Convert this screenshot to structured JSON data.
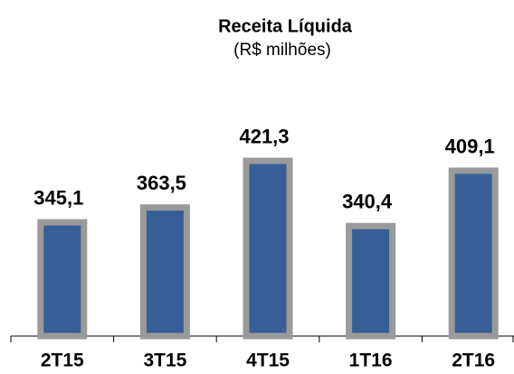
{
  "chart_data": {
    "type": "bar",
    "title": "Receita Líquida",
    "subtitle": "(R$ milhões)",
    "categories": [
      "2T15",
      "3T15",
      "4T15",
      "1T16",
      "2T16"
    ],
    "values": [
      345.1,
      363.5,
      421.3,
      340.4,
      409.1
    ],
    "value_labels": [
      "345,1",
      "363,5",
      "421,3",
      "340,4",
      "409,1"
    ],
    "color": "#375e97",
    "edge_color": "#9a9a9a",
    "ylim": [
      200,
      450
    ]
  }
}
